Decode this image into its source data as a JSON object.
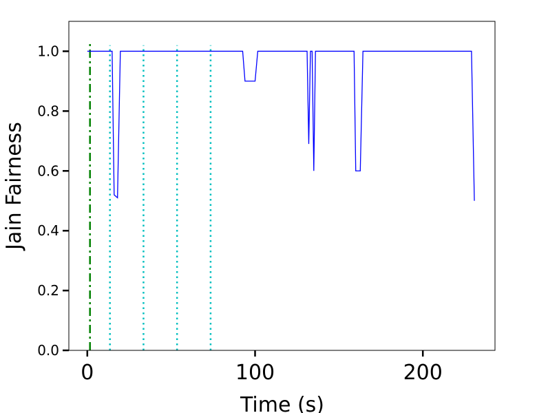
{
  "chart_data": {
    "type": "line",
    "xlabel": "Time (s)",
    "ylabel": "Jain Fairness",
    "xlim": [
      -11,
      243
    ],
    "ylim": [
      0,
      1.1
    ],
    "xticks": [
      0,
      100,
      200
    ],
    "yticks": [
      {
        "value": 0,
        "label": "0.0"
      },
      0.2,
      0.4,
      0.6,
      0.8,
      {
        "value": 1,
        "label": "1.0"
      }
    ],
    "series": [
      {
        "color": "#0000ff",
        "x": [
          0,
          14.8,
          16,
          18,
          19.7,
          92.6,
          94,
          100,
          101.6,
          131,
          132,
          133,
          134,
          135,
          136,
          159,
          160,
          162.7,
          164.3,
          229,
          230.7
        ],
        "values": [
          1.0,
          1.0,
          0.52,
          0.51,
          1.0,
          1.0,
          0.9,
          0.9,
          1.0,
          1.0,
          0.69,
          1.0,
          1.0,
          0.6,
          1.0,
          1.0,
          0.6,
          0.6,
          1.0,
          1.0,
          0.5
        ]
      }
    ],
    "vlines": [
      {
        "x": 1.6,
        "ymax": 1.03,
        "color": "#008000",
        "style": "dashdot"
      },
      {
        "x": 13.5,
        "ymax": 1.02,
        "color": "#00bfbf",
        "style": "dotted"
      },
      {
        "x": 33.5,
        "ymax": 1.02,
        "color": "#00bfbf",
        "style": "dotted"
      },
      {
        "x": 53.5,
        "ymax": 1.02,
        "color": "#00bfbf",
        "style": "dotted"
      },
      {
        "x": 73.5,
        "ymax": 1.02,
        "color": "#00bfbf",
        "style": "dotted"
      }
    ]
  }
}
